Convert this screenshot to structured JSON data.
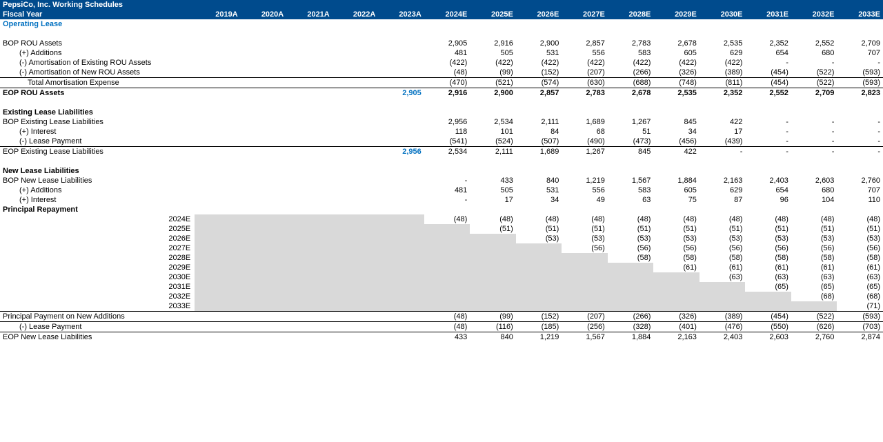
{
  "header": {
    "title": "PepsiCo, Inc. Working Schedules",
    "subtitle": "Fiscal Year",
    "years": [
      "2019A",
      "2020A",
      "2021A",
      "2022A",
      "2023A",
      "2024E",
      "2025E",
      "2026E",
      "2027E",
      "2028E",
      "2029E",
      "2030E",
      "2031E",
      "2032E",
      "2033E"
    ]
  },
  "section1": {
    "title": "Operating Lease",
    "rows": {
      "bop_rou": {
        "label": "BOP ROU Assets",
        "vals": [
          "",
          "",
          "",
          "",
          "",
          "2,905",
          "2,916",
          "2,900",
          "2,857",
          "2,783",
          "2,678",
          "2,535",
          "2,352",
          "2,552",
          "2,709"
        ]
      },
      "additions": {
        "label": "(+) Additions",
        "vals": [
          "",
          "",
          "",
          "",
          "",
          "481",
          "505",
          "531",
          "556",
          "583",
          "605",
          "629",
          "654",
          "680",
          "707"
        ]
      },
      "amort_ex": {
        "label": "(-) Amortisation of Existing ROU Assets",
        "vals": [
          "",
          "",
          "",
          "",
          "",
          "(422)",
          "(422)",
          "(422)",
          "(422)",
          "(422)",
          "(422)",
          "(422)",
          "-",
          "-",
          "-"
        ]
      },
      "amort_new": {
        "label": "(-) Amortisation of New ROU Assets",
        "vals": [
          "",
          "",
          "",
          "",
          "",
          "(48)",
          "(99)",
          "(152)",
          "(207)",
          "(266)",
          "(326)",
          "(389)",
          "(454)",
          "(522)",
          "(593)"
        ]
      },
      "total_amort": {
        "label": "Total Amortisation Expense",
        "vals": [
          "",
          "",
          "",
          "",
          "",
          "(470)",
          "(521)",
          "(574)",
          "(630)",
          "(688)",
          "(748)",
          "(811)",
          "(454)",
          "(522)",
          "(593)"
        ]
      },
      "eop_rou": {
        "label": "EOP ROU Assets",
        "vals": [
          "",
          "",
          "",
          "",
          "2,905",
          "2,916",
          "2,900",
          "2,857",
          "2,783",
          "2,678",
          "2,535",
          "2,352",
          "2,552",
          "2,709",
          "2,823"
        ]
      }
    }
  },
  "section2": {
    "title": "Existing Lease Liabilities",
    "rows": {
      "bop": {
        "label": "BOP Existing Lease Liabilities",
        "vals": [
          "",
          "",
          "",
          "",
          "",
          "2,956",
          "2,534",
          "2,111",
          "1,689",
          "1,267",
          "845",
          "422",
          "-",
          "-",
          "-"
        ]
      },
      "int": {
        "label": "(+) Interest",
        "vals": [
          "",
          "",
          "",
          "",
          "",
          "118",
          "101",
          "84",
          "68",
          "51",
          "34",
          "17",
          "-",
          "-",
          "-"
        ]
      },
      "pay": {
        "label": "(-) Lease Payment",
        "vals": [
          "",
          "",
          "",
          "",
          "",
          "(541)",
          "(524)",
          "(507)",
          "(490)",
          "(473)",
          "(456)",
          "(439)",
          "-",
          "-",
          "-"
        ]
      },
      "eop": {
        "label": "EOP Existing Lease Liabilities",
        "vals": [
          "",
          "",
          "",
          "",
          "2,956",
          "2,534",
          "2,111",
          "1,689",
          "1,267",
          "845",
          "422",
          "-",
          "-",
          "-",
          "-"
        ]
      }
    }
  },
  "section3": {
    "title": "New Lease Liabilities",
    "rows": {
      "bop": {
        "label": "BOP New Lease Liabilities",
        "vals": [
          "",
          "",
          "",
          "",
          "",
          "-",
          "433",
          "840",
          "1,219",
          "1,567",
          "1,884",
          "2,163",
          "2,403",
          "2,603",
          "2,760"
        ]
      },
      "add": {
        "label": "(+) Additions",
        "vals": [
          "",
          "",
          "",
          "",
          "",
          "481",
          "505",
          "531",
          "556",
          "583",
          "605",
          "629",
          "654",
          "680",
          "707"
        ]
      },
      "int": {
        "label": "(+) Interest",
        "vals": [
          "",
          "",
          "",
          "",
          "",
          "-",
          "17",
          "34",
          "49",
          "63",
          "75",
          "87",
          "96",
          "104",
          "110"
        ]
      }
    },
    "principal_title": "Principal Repayment",
    "schedule_years": [
      "2024E",
      "2025E",
      "2026E",
      "2027E",
      "2028E",
      "2029E",
      "2030E",
      "2031E",
      "2032E",
      "2033E"
    ],
    "schedule_vals": [
      [
        "(48)",
        "(48)",
        "(48)",
        "(48)",
        "(48)",
        "(48)",
        "(48)",
        "(48)",
        "(48)",
        "(48)"
      ],
      [
        "",
        "(51)",
        "(51)",
        "(51)",
        "(51)",
        "(51)",
        "(51)",
        "(51)",
        "(51)",
        "(51)"
      ],
      [
        "",
        "",
        "(53)",
        "(53)",
        "(53)",
        "(53)",
        "(53)",
        "(53)",
        "(53)",
        "(53)"
      ],
      [
        "",
        "",
        "",
        "(56)",
        "(56)",
        "(56)",
        "(56)",
        "(56)",
        "(56)",
        "(56)"
      ],
      [
        "",
        "",
        "",
        "",
        "(58)",
        "(58)",
        "(58)",
        "(58)",
        "(58)",
        "(58)"
      ],
      [
        "",
        "",
        "",
        "",
        "",
        "(61)",
        "(61)",
        "(61)",
        "(61)",
        "(61)"
      ],
      [
        "",
        "",
        "",
        "",
        "",
        "",
        "(63)",
        "(63)",
        "(63)",
        "(63)"
      ],
      [
        "",
        "",
        "",
        "",
        "",
        "",
        "",
        "(65)",
        "(65)",
        "(65)"
      ],
      [
        "",
        "",
        "",
        "",
        "",
        "",
        "",
        "",
        "(68)",
        "(68)"
      ],
      [
        "",
        "",
        "",
        "",
        "",
        "",
        "",
        "",
        "",
        "(71)"
      ]
    ],
    "footer": {
      "ppna": {
        "label": "Principal Payment on New Additions",
        "vals": [
          "",
          "",
          "",
          "",
          "",
          "(48)",
          "(99)",
          "(152)",
          "(207)",
          "(266)",
          "(326)",
          "(389)",
          "(454)",
          "(522)",
          "(593)"
        ]
      },
      "lp": {
        "label": "(-) Lease Payment",
        "vals": [
          "",
          "",
          "",
          "",
          "",
          "(48)",
          "(116)",
          "(185)",
          "(256)",
          "(328)",
          "(401)",
          "(476)",
          "(550)",
          "(626)",
          "(703)"
        ]
      },
      "eop": {
        "label": "EOP New Lease Liabilities",
        "vals": [
          "",
          "",
          "",
          "",
          "",
          "433",
          "840",
          "1,219",
          "1,567",
          "1,884",
          "2,163",
          "2,403",
          "2,603",
          "2,760",
          "2,874"
        ]
      }
    }
  },
  "colors": {
    "header_bg": "#004b8d",
    "accent": "#0070c0",
    "shade": "#d9d9d9",
    "border": "#000000"
  }
}
